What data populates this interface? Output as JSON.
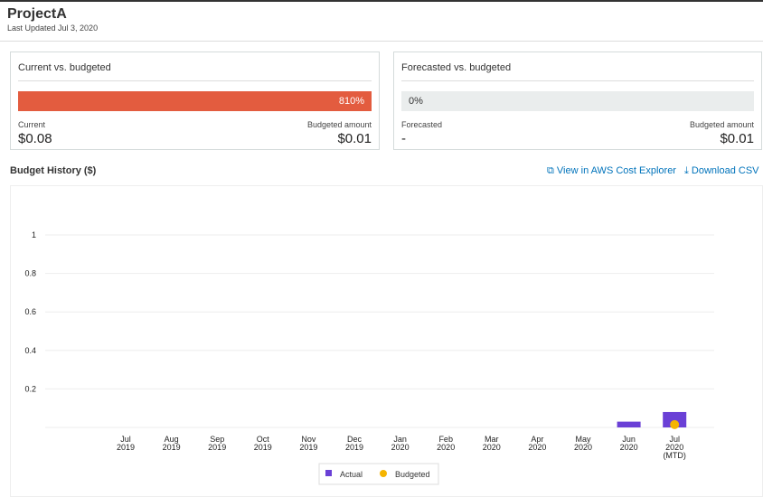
{
  "header": {
    "title": "ProjectA",
    "subtitle": "Last Updated Jul 3, 2020"
  },
  "current_card": {
    "title": "Current vs. budgeted",
    "percent_label": "810%",
    "percent": 810,
    "left_label": "Current",
    "left_value": "$0.08",
    "right_label": "Budgeted amount",
    "right_value": "$0.01"
  },
  "forecast_card": {
    "title": "Forecasted vs. budgeted",
    "percent_label": "0%",
    "percent": 0,
    "left_label": "Forecasted",
    "left_value": "-",
    "right_label": "Budgeted amount",
    "right_value": "$0.01"
  },
  "history": {
    "title": "Budget History ($)",
    "explorer_link": "View in AWS Cost Explorer",
    "download_link": "Download CSV"
  },
  "colors": {
    "actual": "#6a40d6",
    "budgeted": "#f5b400",
    "over": "#e35c3f",
    "link": "#0073bb"
  },
  "chart_data": {
    "type": "bar",
    "categories": [
      [
        "Jul",
        "2019"
      ],
      [
        "Aug",
        "2019"
      ],
      [
        "Sep",
        "2019"
      ],
      [
        "Oct",
        "2019"
      ],
      [
        "Nov",
        "2019"
      ],
      [
        "Dec",
        "2019"
      ],
      [
        "Jan",
        "2020"
      ],
      [
        "Feb",
        "2020"
      ],
      [
        "Mar",
        "2020"
      ],
      [
        "Apr",
        "2020"
      ],
      [
        "May",
        "2020"
      ],
      [
        "Jun",
        "2020"
      ],
      [
        "Jul",
        "2020",
        "(MTD)"
      ]
    ],
    "series": [
      {
        "name": "Actual",
        "kind": "bar",
        "values": [
          0,
          0,
          0,
          0,
          0,
          0,
          0,
          0,
          0,
          0,
          0,
          0.03,
          0.08
        ]
      },
      {
        "name": "Budgeted",
        "kind": "point",
        "values": [
          null,
          null,
          null,
          null,
          null,
          null,
          null,
          null,
          null,
          null,
          null,
          null,
          0.01
        ]
      }
    ],
    "yticks": [
      0.2,
      0.4,
      0.6,
      0.8,
      1
    ],
    "ylim": [
      0,
      1.1
    ],
    "legend": "bottom-center",
    "grid": true
  }
}
